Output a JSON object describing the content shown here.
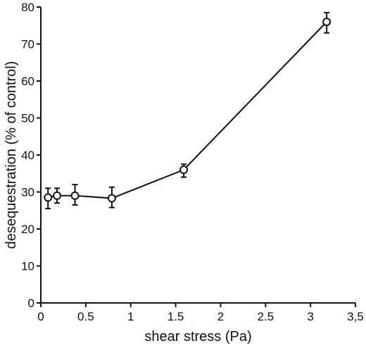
{
  "chart_data": {
    "type": "line",
    "xlabel": "shear stress (Pa)",
    "ylabel": "desequestration (% of control)",
    "xlim": [
      0,
      3.5
    ],
    "ylim": [
      0,
      80
    ],
    "x_ticks": [
      0,
      0.5,
      1,
      1.5,
      2,
      2.5,
      3,
      3.5
    ],
    "x_tick_labels": [
      "0",
      "0.5",
      "1",
      "1.5",
      "2",
      "2.5",
      "3",
      "3,5"
    ],
    "y_ticks": [
      0,
      10,
      20,
      30,
      40,
      50,
      60,
      70,
      80
    ],
    "y_tick_labels": [
      "0",
      "10",
      "20",
      "30",
      "40",
      "50",
      "60",
      "70",
      "80"
    ],
    "grid": false,
    "series": [
      {
        "x": [
          0.08,
          0.18,
          0.38,
          0.79,
          1.59,
          3.18
        ],
        "y": [
          28.5,
          29,
          29,
          28.3,
          36,
          76
        ],
        "y_err_low": [
          3,
          2,
          2.5,
          2.5,
          2,
          3
        ],
        "y_err_high": [
          2.5,
          2,
          3,
          3,
          1.5,
          2.5
        ],
        "marker": "open-circle",
        "color": "#111111"
      }
    ]
  }
}
